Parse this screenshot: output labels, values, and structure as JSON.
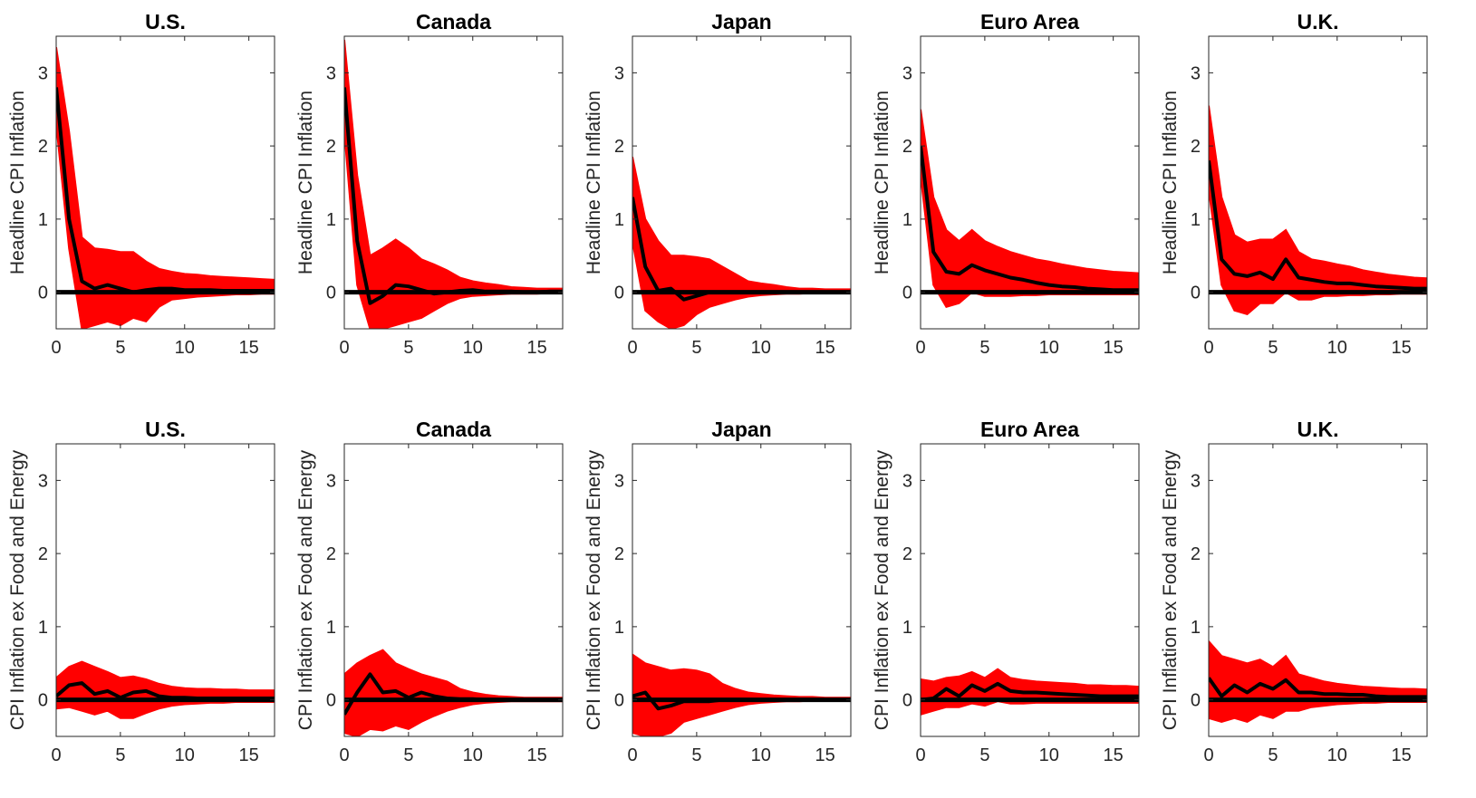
{
  "colors": {
    "band": "#ff0000",
    "median": "#000000",
    "zero_line": "#000000",
    "axes": "#262626"
  },
  "chart_data": [
    {
      "type": "line",
      "title": "U.S.",
      "ylabel": "Headline CPI Inflation",
      "xlim": [
        0,
        17
      ],
      "ylim": [
        -0.5,
        3.5
      ],
      "xticks": [
        "0",
        "5",
        "10",
        "15"
      ],
      "yticks": [
        "0",
        "1",
        "2",
        "3"
      ],
      "x": [
        0,
        1,
        2,
        3,
        4,
        5,
        6,
        7,
        8,
        9,
        10,
        11,
        12,
        13,
        14,
        15,
        16,
        17
      ],
      "series": [
        {
          "role": "median",
          "values": [
            2.8,
            1.0,
            0.15,
            0.05,
            0.1,
            0.05,
            0.0,
            0.03,
            0.05,
            0.05,
            0.03,
            0.03,
            0.03,
            0.02,
            0.02,
            0.02,
            0.02,
            0.02
          ]
        },
        {
          "role": "upper",
          "values": [
            3.35,
            2.2,
            0.75,
            0.6,
            0.58,
            0.55,
            0.55,
            0.42,
            0.32,
            0.28,
            0.25,
            0.24,
            0.22,
            0.21,
            0.2,
            0.19,
            0.18,
            0.17
          ]
        },
        {
          "role": "lower",
          "values": [
            2.3,
            0.6,
            -0.5,
            -0.45,
            -0.4,
            -0.45,
            -0.35,
            -0.4,
            -0.2,
            -0.1,
            -0.08,
            -0.06,
            -0.05,
            -0.04,
            -0.03,
            -0.03,
            -0.02,
            -0.02
          ]
        }
      ]
    },
    {
      "type": "line",
      "title": "Canada",
      "ylabel": "Headline CPI Inflation",
      "xlim": [
        0,
        17
      ],
      "ylim": [
        -0.5,
        3.5
      ],
      "xticks": [
        "0",
        "5",
        "10",
        "15"
      ],
      "yticks": [
        "0",
        "1",
        "2",
        "3"
      ],
      "x": [
        0,
        1,
        2,
        3,
        4,
        5,
        6,
        7,
        8,
        9,
        10,
        11,
        12,
        13,
        14,
        15,
        16,
        17
      ],
      "series": [
        {
          "role": "median",
          "values": [
            2.8,
            0.7,
            -0.15,
            -0.05,
            0.1,
            0.08,
            0.03,
            -0.02,
            0.0,
            0.02,
            0.03,
            0.01,
            0.01,
            0.01,
            0.0,
            0.0,
            0.01,
            0.01
          ]
        },
        {
          "role": "upper",
          "values": [
            3.45,
            1.6,
            0.5,
            0.6,
            0.72,
            0.6,
            0.45,
            0.38,
            0.3,
            0.2,
            0.15,
            0.12,
            0.1,
            0.07,
            0.06,
            0.05,
            0.05,
            0.05
          ]
        },
        {
          "role": "lower",
          "values": [
            2.2,
            0.1,
            -0.5,
            -0.5,
            -0.45,
            -0.4,
            -0.35,
            -0.25,
            -0.15,
            -0.08,
            -0.05,
            -0.04,
            -0.03,
            -0.02,
            -0.02,
            -0.02,
            -0.01,
            -0.01
          ]
        }
      ]
    },
    {
      "type": "line",
      "title": "Japan",
      "ylabel": "Headline CPI Inflation",
      "xlim": [
        0,
        17
      ],
      "ylim": [
        -0.5,
        3.5
      ],
      "xticks": [
        "0",
        "5",
        "10",
        "15"
      ],
      "yticks": [
        "0",
        "1",
        "2",
        "3"
      ],
      "x": [
        0,
        1,
        2,
        3,
        4,
        5,
        6,
        7,
        8,
        9,
        10,
        11,
        12,
        13,
        14,
        15,
        16,
        17
      ],
      "series": [
        {
          "role": "median",
          "values": [
            1.3,
            0.35,
            0.02,
            0.05,
            -0.1,
            -0.05,
            0.0,
            0.0,
            0.0,
            0.0,
            0.0,
            0.0,
            0.0,
            0.0,
            0.0,
            0.0,
            0.0,
            0.0
          ]
        },
        {
          "role": "upper",
          "values": [
            1.85,
            1.0,
            0.7,
            0.5,
            0.5,
            0.48,
            0.45,
            0.35,
            0.25,
            0.15,
            0.12,
            0.1,
            0.07,
            0.05,
            0.05,
            0.04,
            0.04,
            0.04
          ]
        },
        {
          "role": "lower",
          "values": [
            0.7,
            -0.25,
            -0.4,
            -0.5,
            -0.45,
            -0.3,
            -0.2,
            -0.15,
            -0.1,
            -0.06,
            -0.04,
            -0.03,
            -0.02,
            -0.02,
            -0.01,
            -0.01,
            -0.01,
            -0.01
          ]
        }
      ]
    },
    {
      "type": "line",
      "title": "Euro Area",
      "ylabel": "Headline CPI Inflation",
      "xlim": [
        0,
        17
      ],
      "ylim": [
        -0.5,
        3.5
      ],
      "xticks": [
        "0",
        "5",
        "10",
        "15"
      ],
      "yticks": [
        "0",
        "1",
        "2",
        "3"
      ],
      "x": [
        0,
        1,
        2,
        3,
        4,
        5,
        6,
        7,
        8,
        9,
        10,
        11,
        12,
        13,
        14,
        15,
        16,
        17
      ],
      "series": [
        {
          "role": "median",
          "values": [
            2.0,
            0.55,
            0.28,
            0.25,
            0.37,
            0.3,
            0.25,
            0.2,
            0.17,
            0.13,
            0.1,
            0.08,
            0.07,
            0.05,
            0.04,
            0.03,
            0.03,
            0.03
          ]
        },
        {
          "role": "upper",
          "values": [
            2.5,
            1.3,
            0.85,
            0.7,
            0.85,
            0.7,
            0.62,
            0.55,
            0.5,
            0.45,
            0.42,
            0.38,
            0.35,
            0.32,
            0.3,
            0.28,
            0.27,
            0.26
          ]
        },
        {
          "role": "lower",
          "values": [
            1.6,
            0.1,
            -0.2,
            -0.15,
            0.0,
            -0.05,
            -0.05,
            -0.05,
            -0.04,
            -0.04,
            -0.03,
            -0.03,
            -0.03,
            -0.03,
            -0.03,
            -0.03,
            -0.03,
            -0.03
          ]
        }
      ]
    },
    {
      "type": "line",
      "title": "U.K.",
      "ylabel": "Headline CPI Inflation",
      "xlim": [
        0,
        17
      ],
      "ylim": [
        -0.5,
        3.5
      ],
      "xticks": [
        "0",
        "5",
        "10",
        "15"
      ],
      "yticks": [
        "0",
        "1",
        "2",
        "3"
      ],
      "x": [
        0,
        1,
        2,
        3,
        4,
        5,
        6,
        7,
        8,
        9,
        10,
        11,
        12,
        13,
        14,
        15,
        16,
        17
      ],
      "series": [
        {
          "role": "median",
          "values": [
            1.8,
            0.45,
            0.25,
            0.22,
            0.27,
            0.18,
            0.45,
            0.2,
            0.17,
            0.14,
            0.12,
            0.12,
            0.1,
            0.08,
            0.07,
            0.06,
            0.05,
            0.05
          ]
        },
        {
          "role": "upper",
          "values": [
            2.55,
            1.3,
            0.78,
            0.68,
            0.72,
            0.72,
            0.85,
            0.55,
            0.45,
            0.42,
            0.38,
            0.35,
            0.3,
            0.27,
            0.24,
            0.22,
            0.2,
            0.19
          ]
        },
        {
          "role": "lower",
          "values": [
            1.4,
            0.1,
            -0.25,
            -0.3,
            -0.15,
            -0.15,
            0.0,
            -0.1,
            -0.1,
            -0.05,
            -0.05,
            -0.04,
            -0.04,
            -0.03,
            -0.03,
            -0.02,
            -0.02,
            -0.02
          ]
        }
      ]
    },
    {
      "type": "line",
      "title": "U.S.",
      "ylabel": "CPI Inflation ex Food and Energy",
      "xlim": [
        0,
        17
      ],
      "ylim": [
        -0.5,
        3.5
      ],
      "xticks": [
        "0",
        "5",
        "10",
        "15"
      ],
      "yticks": [
        "0",
        "1",
        "2",
        "3"
      ],
      "x": [
        0,
        1,
        2,
        3,
        4,
        5,
        6,
        7,
        8,
        9,
        10,
        11,
        12,
        13,
        14,
        15,
        16,
        17
      ],
      "series": [
        {
          "role": "median",
          "values": [
            0.05,
            0.2,
            0.23,
            0.08,
            0.12,
            0.03,
            0.1,
            0.12,
            0.05,
            0.03,
            0.03,
            0.02,
            0.02,
            0.02,
            0.02,
            0.02,
            0.02,
            0.02
          ]
        },
        {
          "role": "upper",
          "values": [
            0.3,
            0.45,
            0.52,
            0.45,
            0.38,
            0.3,
            0.32,
            0.28,
            0.22,
            0.18,
            0.16,
            0.15,
            0.15,
            0.14,
            0.14,
            0.13,
            0.13,
            0.13
          ]
        },
        {
          "role": "lower",
          "values": [
            -0.12,
            -0.1,
            -0.15,
            -0.2,
            -0.15,
            -0.25,
            -0.25,
            -0.18,
            -0.12,
            -0.08,
            -0.06,
            -0.05,
            -0.04,
            -0.04,
            -0.03,
            -0.03,
            -0.03,
            -0.03
          ]
        }
      ]
    },
    {
      "type": "line",
      "title": "Canada",
      "ylabel": "CPI Inflation ex Food and Energy",
      "xlim": [
        0,
        17
      ],
      "ylim": [
        -0.5,
        3.5
      ],
      "xticks": [
        "0",
        "5",
        "10",
        "15"
      ],
      "yticks": [
        "0",
        "1",
        "2",
        "3"
      ],
      "x": [
        0,
        1,
        2,
        3,
        4,
        5,
        6,
        7,
        8,
        9,
        10,
        11,
        12,
        13,
        14,
        15,
        16,
        17
      ],
      "series": [
        {
          "role": "median",
          "values": [
            -0.2,
            0.1,
            0.35,
            0.1,
            0.12,
            0.03,
            0.1,
            0.05,
            0.02,
            0.01,
            0.01,
            0.0,
            0.0,
            0.0,
            0.0,
            0.0,
            0.0,
            0.0
          ]
        },
        {
          "role": "upper",
          "values": [
            0.35,
            0.5,
            0.6,
            0.68,
            0.5,
            0.42,
            0.35,
            0.3,
            0.25,
            0.15,
            0.1,
            0.07,
            0.05,
            0.04,
            0.03,
            0.03,
            0.03,
            0.03
          ]
        },
        {
          "role": "lower",
          "values": [
            -0.45,
            -0.5,
            -0.4,
            -0.42,
            -0.35,
            -0.4,
            -0.3,
            -0.22,
            -0.15,
            -0.1,
            -0.06,
            -0.04,
            -0.03,
            -0.02,
            -0.02,
            -0.02,
            -0.02,
            -0.02
          ]
        }
      ]
    },
    {
      "type": "line",
      "title": "Japan",
      "ylabel": "CPI Inflation ex Food and Energy",
      "xlim": [
        0,
        17
      ],
      "ylim": [
        -0.5,
        3.5
      ],
      "xticks": [
        "0",
        "5",
        "10",
        "15"
      ],
      "yticks": [
        "0",
        "1",
        "2",
        "3"
      ],
      "x": [
        0,
        1,
        2,
        3,
        4,
        5,
        6,
        7,
        8,
        9,
        10,
        11,
        12,
        13,
        14,
        15,
        16,
        17
      ],
      "series": [
        {
          "role": "median",
          "values": [
            0.05,
            0.1,
            -0.12,
            -0.08,
            -0.02,
            -0.02,
            -0.02,
            0.0,
            0.0,
            0.0,
            0.0,
            0.0,
            0.0,
            0.0,
            0.0,
            0.0,
            0.0,
            0.0
          ]
        },
        {
          "role": "upper",
          "values": [
            0.62,
            0.5,
            0.45,
            0.4,
            0.42,
            0.4,
            0.35,
            0.22,
            0.15,
            0.1,
            0.08,
            0.06,
            0.05,
            0.04,
            0.04,
            0.03,
            0.03,
            0.03
          ]
        },
        {
          "role": "lower",
          "values": [
            -0.45,
            -0.5,
            -0.5,
            -0.45,
            -0.3,
            -0.25,
            -0.2,
            -0.15,
            -0.1,
            -0.06,
            -0.04,
            -0.03,
            -0.02,
            -0.02,
            -0.01,
            -0.01,
            -0.01,
            -0.01
          ]
        }
      ]
    },
    {
      "type": "line",
      "title": "Euro Area",
      "ylabel": "CPI Inflation ex Food and Energy",
      "xlim": [
        0,
        17
      ],
      "ylim": [
        -0.5,
        3.5
      ],
      "xticks": [
        "0",
        "5",
        "10",
        "15"
      ],
      "yticks": [
        "0",
        "1",
        "2",
        "3"
      ],
      "x": [
        0,
        1,
        2,
        3,
        4,
        5,
        6,
        7,
        8,
        9,
        10,
        11,
        12,
        13,
        14,
        15,
        16,
        17
      ],
      "series": [
        {
          "role": "median",
          "values": [
            0.0,
            0.02,
            0.15,
            0.05,
            0.2,
            0.12,
            0.22,
            0.12,
            0.1,
            0.1,
            0.09,
            0.08,
            0.07,
            0.06,
            0.05,
            0.05,
            0.05,
            0.05
          ]
        },
        {
          "role": "upper",
          "values": [
            0.28,
            0.25,
            0.3,
            0.32,
            0.38,
            0.3,
            0.42,
            0.3,
            0.27,
            0.25,
            0.24,
            0.23,
            0.22,
            0.2,
            0.2,
            0.19,
            0.19,
            0.18
          ]
        },
        {
          "role": "lower",
          "values": [
            -0.2,
            -0.15,
            -0.1,
            -0.1,
            -0.05,
            -0.08,
            -0.02,
            -0.05,
            -0.05,
            -0.04,
            -0.04,
            -0.04,
            -0.04,
            -0.04,
            -0.04,
            -0.04,
            -0.04,
            -0.04
          ]
        }
      ]
    },
    {
      "type": "line",
      "title": "U.K.",
      "ylabel": "CPI Inflation ex Food and Energy",
      "xlim": [
        0,
        17
      ],
      "ylim": [
        -0.5,
        3.5
      ],
      "xticks": [
        "0",
        "5",
        "10",
        "15"
      ],
      "yticks": [
        "0",
        "1",
        "2",
        "3"
      ],
      "x": [
        0,
        1,
        2,
        3,
        4,
        5,
        6,
        7,
        8,
        9,
        10,
        11,
        12,
        13,
        14,
        15,
        16,
        17
      ],
      "series": [
        {
          "role": "median",
          "values": [
            0.3,
            0.05,
            0.2,
            0.1,
            0.22,
            0.15,
            0.27,
            0.1,
            0.1,
            0.08,
            0.08,
            0.07,
            0.07,
            0.05,
            0.04,
            0.04,
            0.04,
            0.04
          ]
        },
        {
          "role": "upper",
          "values": [
            0.8,
            0.6,
            0.55,
            0.5,
            0.55,
            0.45,
            0.6,
            0.35,
            0.3,
            0.25,
            0.22,
            0.2,
            0.18,
            0.17,
            0.16,
            0.15,
            0.15,
            0.14
          ]
        },
        {
          "role": "lower",
          "values": [
            -0.25,
            -0.3,
            -0.25,
            -0.3,
            -0.2,
            -0.25,
            -0.15,
            -0.15,
            -0.1,
            -0.08,
            -0.06,
            -0.05,
            -0.04,
            -0.04,
            -0.03,
            -0.03,
            -0.03,
            -0.03
          ]
        }
      ]
    }
  ]
}
